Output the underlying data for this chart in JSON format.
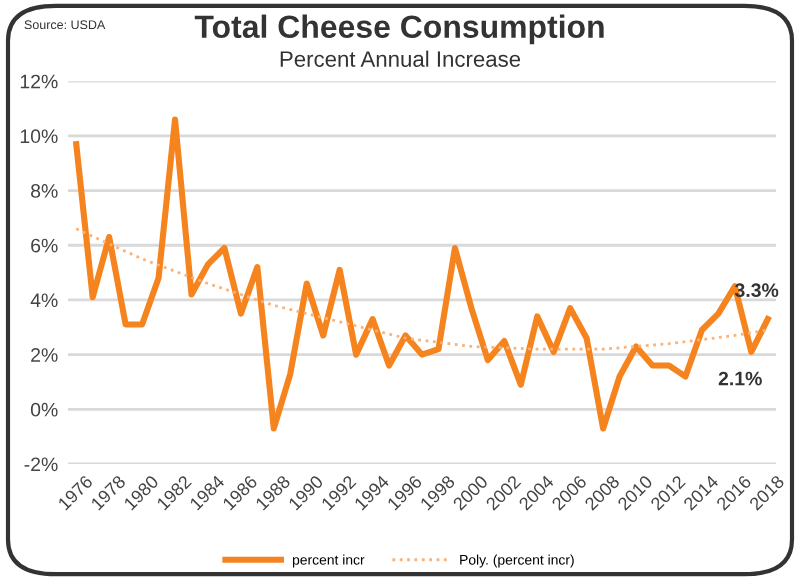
{
  "chart_data": {
    "type": "line",
    "title": "Total Cheese Consumption",
    "subtitle": "Percent Annual Increase",
    "annotations": [
      "Source: USDA",
      {
        "text": "3.3%",
        "x": 2018,
        "y": 3.3
      },
      {
        "text": "2.1%",
        "x": 2017,
        "y": 2.1
      }
    ],
    "x": [
      1976,
      1977,
      1978,
      1979,
      1980,
      1981,
      1982,
      1983,
      1984,
      1985,
      1986,
      1987,
      1988,
      1989,
      1990,
      1991,
      1992,
      1993,
      1994,
      1995,
      1996,
      1997,
      1998,
      1999,
      2000,
      2001,
      2002,
      2003,
      2004,
      2005,
      2006,
      2007,
      2008,
      2009,
      2010,
      2011,
      2012,
      2013,
      2014,
      2015,
      2016,
      2017,
      2018
    ],
    "series": [
      {
        "name": "percent incr",
        "color": "#f5841f",
        "line_style": "solid",
        "values": [
          9.7,
          4.1,
          6.3,
          3.1,
          3.1,
          4.8,
          10.6,
          4.2,
          5.3,
          5.9,
          3.5,
          5.2,
          -0.7,
          1.3,
          4.6,
          2.7,
          5.1,
          2.0,
          3.3,
          1.6,
          2.7,
          2.0,
          2.2,
          5.9,
          3.7,
          1.8,
          2.5,
          0.9,
          3.4,
          2.1,
          3.7,
          2.6,
          -0.7,
          1.2,
          2.3,
          1.6,
          1.6,
          1.2,
          2.9,
          3.5,
          4.5,
          2.1,
          3.3
        ]
      },
      {
        "name": "Poly. (percent incr)",
        "color": "#f8b27a",
        "line_style": "dotted",
        "x": [
          1976,
          1980,
          1984,
          1988,
          1992,
          1996,
          2000,
          2004,
          2008,
          2012,
          2016,
          2018
        ],
        "values": [
          6.6,
          5.5,
          4.6,
          3.8,
          3.2,
          2.6,
          2.3,
          2.2,
          2.2,
          2.4,
          2.7,
          2.9
        ]
      }
    ],
    "xlim": [
      1975.5,
      2018.5
    ],
    "xticks": [
      1976,
      1978,
      1980,
      1982,
      1984,
      1986,
      1988,
      1990,
      1992,
      1994,
      1996,
      1998,
      2000,
      2002,
      2004,
      2006,
      2008,
      2010,
      2012,
      2014,
      2016,
      2018
    ],
    "ylim": [
      -2,
      12
    ],
    "yticks": [
      {
        "value": -2,
        "label": "-2%"
      },
      {
        "value": 0,
        "label": "0%"
      },
      {
        "value": 2,
        "label": "2%"
      },
      {
        "value": 4,
        "label": "4%"
      },
      {
        "value": 6,
        "label": "6%"
      },
      {
        "value": 8,
        "label": "8%"
      },
      {
        "value": 10,
        "label": "10%"
      },
      {
        "value": 12,
        "label": "12%"
      }
    ],
    "grid": "y",
    "legend": "bottom",
    "marker": "none"
  }
}
